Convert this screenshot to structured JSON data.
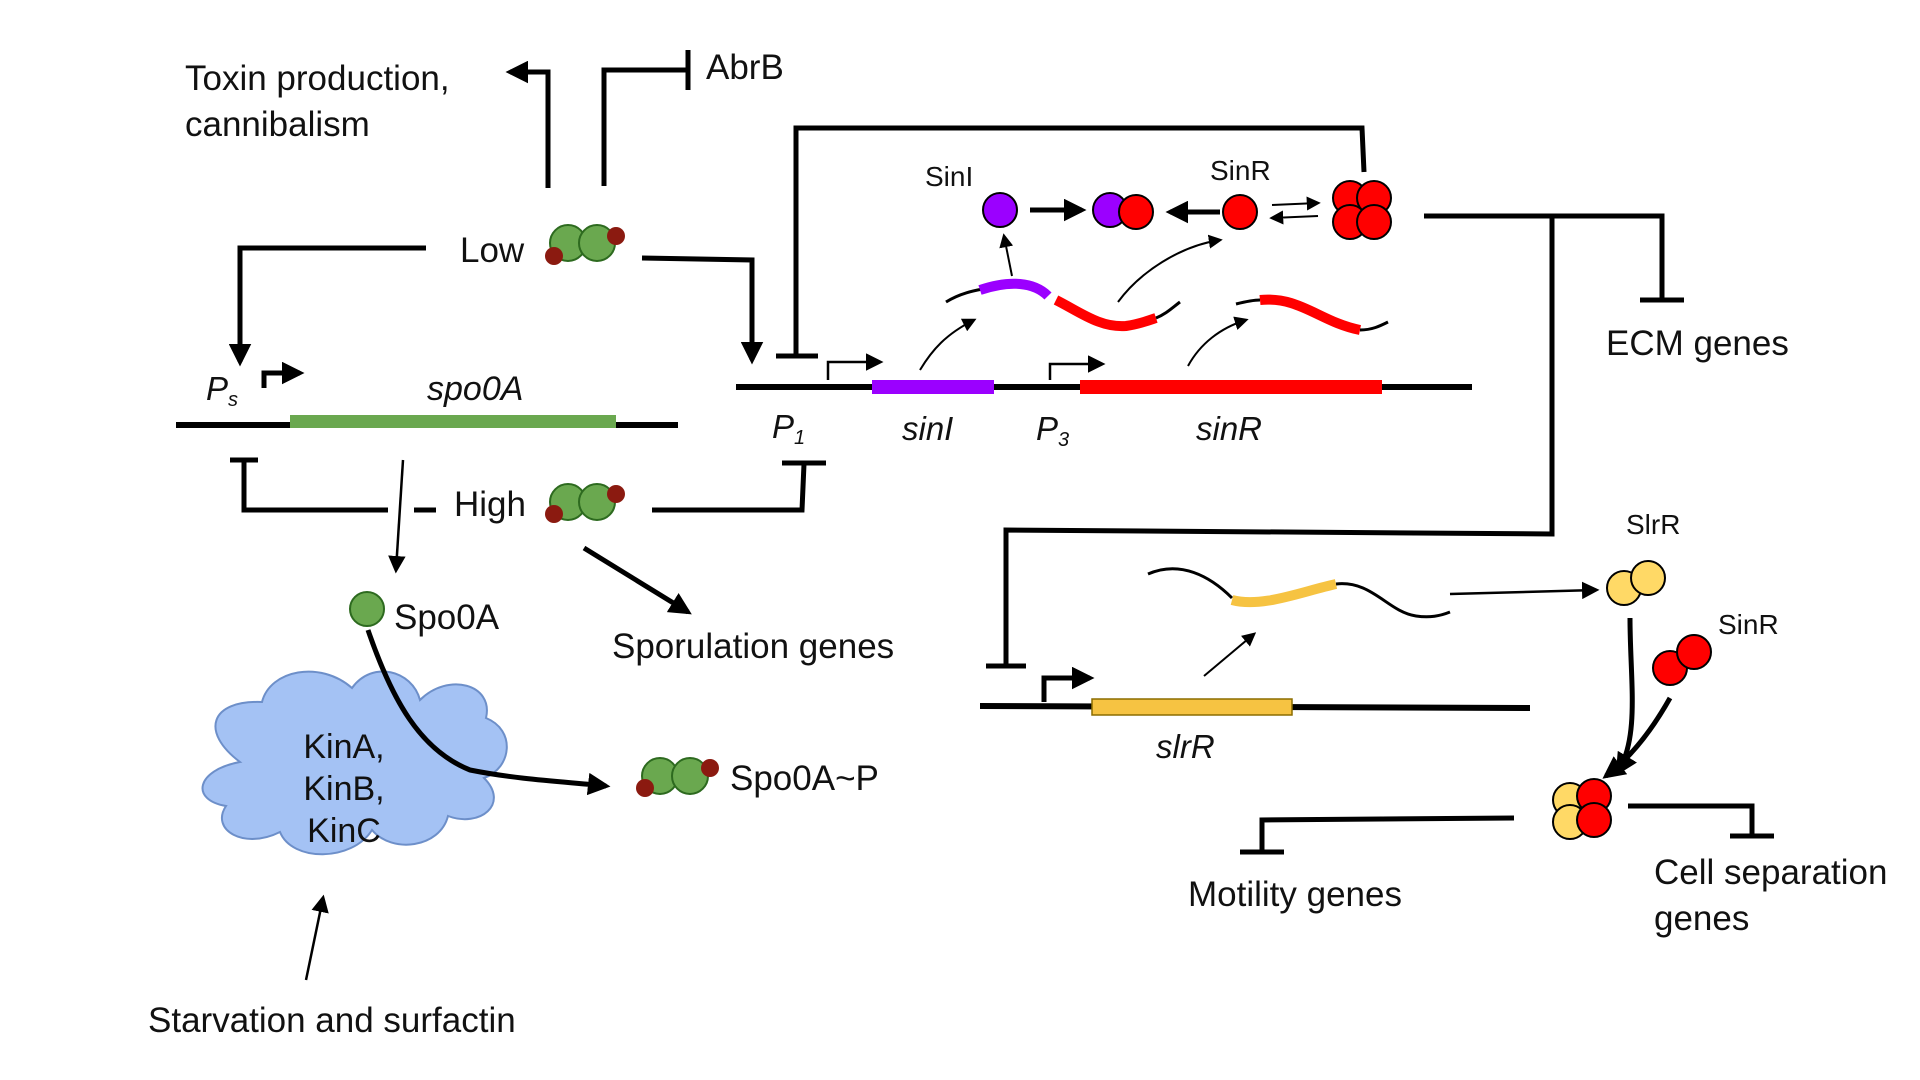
{
  "labels": {
    "toxin_line1": "Toxin production,",
    "toxin_line2": "cannibalism",
    "abrb": "AbrB",
    "low": "Low",
    "high": "High",
    "ps_main": "P",
    "ps_sub": "s",
    "spo0a_gene": "spo0A",
    "p1_main": "P",
    "p1_sub": "1",
    "sini_gene": "sinI",
    "p3_main": "P",
    "p3_sub": "3",
    "sinr_gene": "sinR",
    "sini_protein": "SinI",
    "sinr_protein": "SinR",
    "ecm_genes": "ECM genes",
    "spo0a_protein": "Spo0A",
    "sporulation_genes": "Sporulation genes",
    "kin_line1": "KinA,",
    "kin_line2": "KinB,",
    "kin_line3": "KinC",
    "spo0a_p": "Spo0A~P",
    "starvation": "Starvation and surfactin",
    "slrr_gene": "slrR",
    "slrr_protein": "SlrR",
    "sinr_protein_2": "SinR",
    "motility_genes": "Motility genes",
    "cell_sep_line1": "Cell separation",
    "cell_sep_line2": "genes"
  },
  "colors": {
    "spo0a_green": "#6aa84f",
    "spo0a_dark": "#2d6a1f",
    "phospho_red": "#8b1a10",
    "sini_purple": "#9b00ff",
    "sinr_red": "#ff0000",
    "slrr_yellow": "#f6c342",
    "cloud_blue": "#a4c2f4",
    "cloud_edge": "#6d8fc9"
  }
}
